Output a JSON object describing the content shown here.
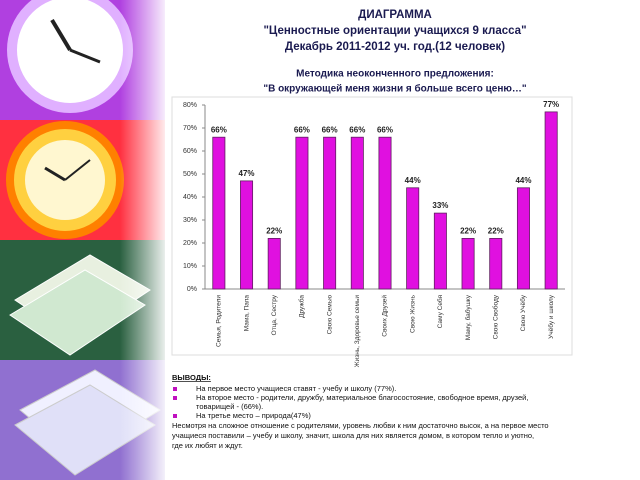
{
  "chart_data": {
    "type": "bar",
    "title_lines": [
      "ДИАГРАММА",
      "\"Ценностные  ориентации учащихся 9 класса\"",
      "Декабрь 2011-2012 уч. год.(12 человек)"
    ],
    "subtitle_lines": [
      "Методика неоконченного предложения:",
      "\"В окружающей меня жизни я больше всего ценю…\""
    ],
    "categories": [
      "Семья, Родители",
      "Мама, Папа",
      "Отца, Сестру",
      "Дружба",
      "Свою Семью",
      "Жизнь, Здоровье семьи",
      "Своих Друзей",
      "Свою Жизнь",
      "Саму Себя",
      "Маму, бабушку",
      "Свою Свободу",
      "Свою Учёбу",
      "Учёбу и школу"
    ],
    "values": [
      66,
      47,
      22,
      66,
      66,
      66,
      66,
      44,
      33,
      22,
      22,
      44,
      77
    ],
    "value_labels": [
      "66%",
      "47%",
      "22%",
      "66%",
      "66%",
      "66%",
      "66%",
      "44%",
      "33%",
      "22%",
      "22%",
      "44%",
      "77%"
    ],
    "color": "#e010e0",
    "ylim": [
      0,
      80
    ],
    "yticks": [
      {
        "value": 0,
        "label": "0%"
      },
      {
        "value": 10,
        "label": "10%"
      },
      {
        "value": 20,
        "label": "20%"
      },
      {
        "value": 30,
        "label": "30%"
      },
      {
        "value": 40,
        "label": "40%"
      },
      {
        "value": 50,
        "label": "50%"
      },
      {
        "value": 60,
        "label": "60%"
      },
      {
        "value": 70,
        "label": "70%"
      },
      {
        "value": 80,
        "label": "80%"
      }
    ],
    "grid": false
  },
  "conclusions": {
    "heading": "ВЫВОДЫ:",
    "bullets": [
      [
        "На первое место учащиеся ставят - учебу и школу (77%)."
      ],
      [
        "На второе место  - родители, дружбу, материальное благосостояние, свободное время, друзей,",
        "товарищей - (66%)."
      ],
      [
        "На третье место – природа(47%)"
      ]
    ],
    "paragraph": [
      "Несмотря на сложное отношение с родителями, уровень любви к ним достаточно высок,  а на первое место",
      "учащиеся поставили – учебу и школу, значит, школа для них является  домом, в котором тепло и уютно,",
      "где их любят и ждут."
    ]
  }
}
